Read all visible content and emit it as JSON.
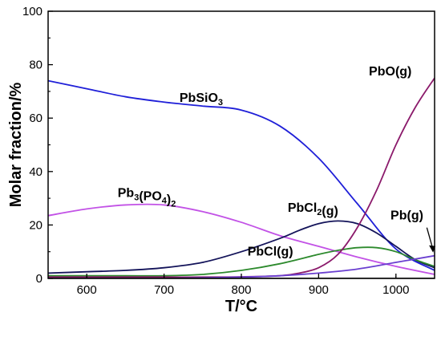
{
  "chart_data": {
    "type": "line",
    "xlabel": "T/°C",
    "ylabel": "Molar fraction/%",
    "xlim": [
      550,
      1050
    ],
    "ylim": [
      0,
      100
    ],
    "xticks": [
      "600",
      "700",
      "800",
      "900",
      "1000"
    ],
    "yticks": [
      "0",
      "20",
      "40",
      "60",
      "80",
      "100"
    ],
    "grid": false,
    "legend": "none",
    "series": [
      {
        "name": "PbSiO3",
        "color": "#1f1fd8",
        "x": [
          550,
          600,
          650,
          700,
          750,
          800,
          850,
          900,
          950,
          1000,
          1050
        ],
        "y": [
          74,
          71,
          68,
          66,
          64.5,
          63,
          57,
          45,
          28,
          11,
          3
        ]
      },
      {
        "name": "Pb3(PO4)2",
        "color": "#c252e6",
        "x": [
          550,
          600,
          650,
          700,
          750,
          800,
          850,
          900,
          950,
          1000,
          1050
        ],
        "y": [
          23.5,
          26,
          27.5,
          27.5,
          25,
          21,
          16,
          12,
          8,
          4.5,
          1.5
        ]
      },
      {
        "name": "PbCl2(g)",
        "color": "#14145a",
        "x": [
          550,
          600,
          650,
          700,
          750,
          800,
          850,
          875,
          900,
          925,
          950,
          975,
          1000,
          1025,
          1050
        ],
        "y": [
          2,
          2.5,
          3,
          4,
          6,
          10,
          15,
          18,
          20.5,
          21.5,
          20.5,
          17,
          12,
          7,
          4
        ]
      },
      {
        "name": "PbCl(g)",
        "color": "#2d8a2d",
        "x": [
          550,
          600,
          650,
          700,
          750,
          800,
          850,
          900,
          925,
          950,
          975,
          1000,
          1025,
          1050
        ],
        "y": [
          1,
          1,
          1,
          1,
          1.5,
          3,
          5.5,
          9,
          10.5,
          11.5,
          11.5,
          10,
          7,
          4.5
        ]
      },
      {
        "name": "PbO(g)",
        "color": "#8b1a6b",
        "x": [
          550,
          600,
          650,
          700,
          750,
          800,
          850,
          875,
          900,
          925,
          950,
          975,
          1000,
          1025,
          1050
        ],
        "y": [
          0.5,
          0.5,
          0.5,
          0.5,
          0.5,
          0.6,
          1,
          2,
          4,
          9,
          19,
          33,
          50,
          64,
          75
        ]
      },
      {
        "name": "Pb(g)",
        "color": "#6a3fd0",
        "x": [
          550,
          600,
          650,
          700,
          750,
          800,
          850,
          900,
          950,
          1000,
          1050
        ],
        "y": [
          0,
          0,
          0,
          0,
          0.2,
          0.5,
          1,
          2,
          3.5,
          6,
          8.5
        ]
      },
      {
        "name": "",
        "color": "#000000",
        "x": [
          550,
          1050
        ],
        "y": [
          0,
          0
        ]
      }
    ],
    "labels": [
      {
        "main": "PbSiO",
        "sub": "3",
        "tail": "",
        "x": 720,
        "y": 66
      },
      {
        "main": "Pb",
        "sub": "3",
        "mid": "(PO",
        "sub2": "4",
        "tail": ")",
        "sub3": "2",
        "x": 640,
        "y": 30.5
      },
      {
        "main": "PbCl",
        "sub": "2",
        "tail": "(g)",
        "x": 860,
        "y": 25
      },
      {
        "main": "PbCl(g)",
        "sub": "",
        "tail": "",
        "x": 808,
        "y": 8.5
      },
      {
        "main": "PbO(g)",
        "sub": "",
        "tail": "",
        "x": 965,
        "y": 76
      },
      {
        "main": "Pb(g)",
        "sub": "",
        "tail": "",
        "x": 993,
        "y": 22
      }
    ]
  }
}
